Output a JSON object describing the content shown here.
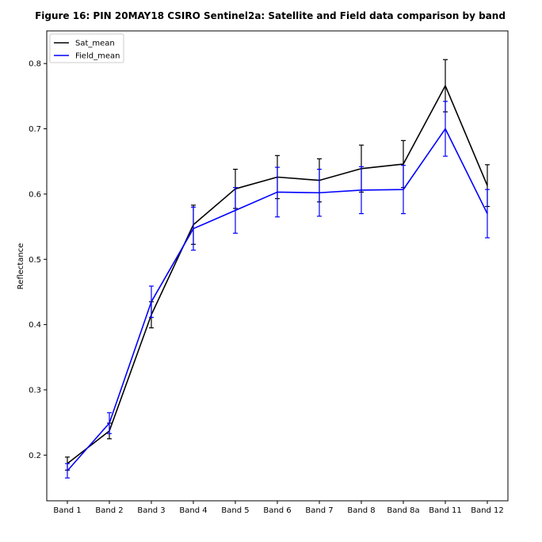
{
  "chart_data": {
    "type": "line",
    "title": "Figure 16: PIN 20MAY18 CSIRO Sentinel2a: Satellite and Field data comparison by band",
    "xlabel": "",
    "ylabel": "Reflectance",
    "categories": [
      "Band 1",
      "Band 2",
      "Band 3",
      "Band 4",
      "Band 5",
      "Band 6",
      "Band 7",
      "Band 8",
      "Band 8a",
      "Band 11",
      "Band 12"
    ],
    "ylim": [
      0.13,
      0.85
    ],
    "yticks": [
      "0.2",
      "0.3",
      "0.4",
      "0.5",
      "0.6",
      "0.7",
      "0.8"
    ],
    "grid": false,
    "legend_position": "top-left",
    "series": [
      {
        "name": "Sat_mean",
        "color": "#000000",
        "values": [
          0.187,
          0.237,
          0.415,
          0.553,
          0.608,
          0.626,
          0.621,
          0.639,
          0.646,
          0.766,
          0.613
        ],
        "errors": [
          0.01,
          0.012,
          0.02,
          0.03,
          0.03,
          0.033,
          0.033,
          0.036,
          0.036,
          0.04,
          0.032
        ]
      },
      {
        "name": "Field_mean",
        "color": "#0000ff",
        "values": [
          0.176,
          0.249,
          0.435,
          0.547,
          0.575,
          0.603,
          0.602,
          0.606,
          0.607,
          0.7,
          0.57
        ],
        "errors": [
          0.011,
          0.016,
          0.024,
          0.033,
          0.035,
          0.038,
          0.036,
          0.036,
          0.037,
          0.042,
          0.037
        ]
      }
    ]
  }
}
